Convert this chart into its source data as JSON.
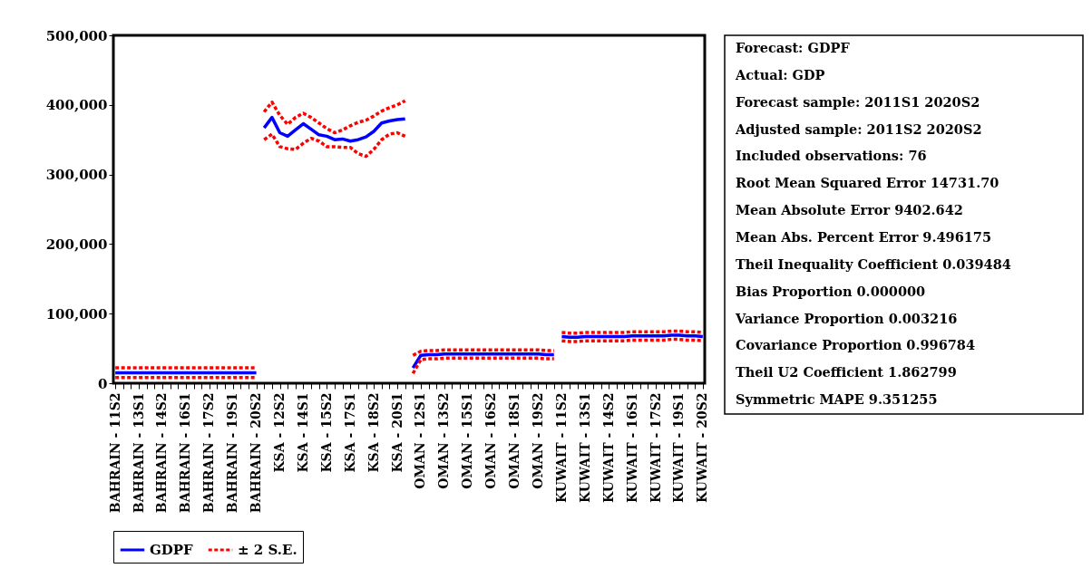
{
  "chart_data": {
    "type": "line",
    "categories": [
      "BAHRAIN - 11S2",
      null,
      null,
      "BAHRAIN - 13S1",
      null,
      null,
      "BAHRAIN - 14S2",
      null,
      null,
      "BAHRAIN - 16S1",
      null,
      null,
      "BAHRAIN - 17S2",
      null,
      null,
      "BAHRAIN - 19S1",
      null,
      null,
      "BAHRAIN - 20S2",
      null,
      null,
      "KSA - 12S2",
      null,
      null,
      "KSA - 14S1",
      null,
      null,
      "KSA - 15S2",
      null,
      null,
      "KSA - 17S1",
      null,
      null,
      "KSA - 18S2",
      null,
      null,
      "KSA - 20S1",
      null,
      null,
      "OMAN - 12S1",
      null,
      null,
      "OMAN - 13S2",
      null,
      null,
      "OMAN - 15S1",
      null,
      null,
      "OMAN - 16S2",
      null,
      null,
      "OMAN - 18S1",
      null,
      null,
      "OMAN - 19S2",
      null,
      null,
      "KUWAIT - 11S2",
      null,
      null,
      "KUWAIT - 13S1",
      null,
      null,
      "KUWAIT - 14S2",
      null,
      null,
      "KUWAIT - 16S1",
      null,
      null,
      "KUWAIT - 17S2",
      null,
      null,
      "KUWAIT - 19S1",
      null,
      null,
      "KUWAIT - 20S2"
    ],
    "series": [
      {
        "name": "GDPF",
        "color": "#0000ff",
        "line_style": "solid",
        "values": [
          15000,
          15000,
          15000,
          15000,
          15000,
          15000,
          15000,
          15000,
          15000,
          15000,
          15000,
          15000,
          15000,
          15000,
          15000,
          15000,
          15000,
          15000,
          15000,
          null,
          null,
          null,
          null,
          null,
          null,
          null,
          null,
          null,
          null,
          null,
          null,
          null,
          null,
          null,
          null,
          null,
          null,
          null,
          null,
          null,
          null,
          null,
          null,
          null,
          null,
          null,
          null,
          null,
          null,
          null,
          null,
          null,
          null,
          null,
          null,
          null,
          null,
          null,
          null,
          null,
          null,
          null,
          null,
          null,
          null,
          null,
          null,
          null,
          null,
          null,
          null,
          null,
          null,
          null,
          null,
          null
        ]
      },
      {
        "name": "± 2 S.E.",
        "color": "#ff0000",
        "line_style": "dashed",
        "values": [
          22000,
          22000,
          22000,
          22000,
          22000,
          22000,
          22000,
          22000,
          22000,
          22000,
          22000,
          22000,
          22000,
          22000,
          22000,
          22000,
          22000,
          22000,
          22000,
          null,
          null,
          null,
          null,
          null,
          null,
          null,
          null,
          null,
          null,
          null,
          null,
          null,
          null,
          null,
          null,
          null,
          null,
          null,
          null,
          null,
          null,
          null,
          null,
          null,
          null,
          null,
          null,
          null,
          null,
          null,
          null,
          null,
          null,
          null,
          null,
          null,
          null,
          null,
          null,
          null,
          null,
          null,
          null,
          null,
          null,
          null,
          null,
          null,
          null,
          null,
          null,
          null,
          null,
          null,
          null,
          null
        ]
      },
      {
        "color": "#ff0000",
        "line_style": "dashed",
        "values": [
          8000,
          8000,
          8000,
          8000,
          8000,
          8000,
          8000,
          8000,
          8000,
          8000,
          8000,
          8000,
          8000,
          8000,
          8000,
          8000,
          8000,
          8000,
          8000,
          null,
          null,
          null,
          null,
          null,
          null,
          null,
          null,
          null,
          null,
          null,
          null,
          null,
          null,
          null,
          null,
          null,
          null,
          null,
          null,
          null,
          null,
          null,
          null,
          null,
          null,
          null,
          null,
          null,
          null,
          null,
          null,
          null,
          null,
          null,
          null,
          null,
          null,
          null,
          null,
          null,
          null,
          null,
          null,
          null,
          null,
          null,
          null,
          null,
          null,
          null,
          null,
          null,
          null,
          null,
          null,
          null
        ]
      },
      {
        "color": "#0000ff",
        "line_style": "solid",
        "values": [
          null,
          null,
          null,
          null,
          null,
          null,
          null,
          null,
          null,
          null,
          null,
          null,
          null,
          null,
          null,
          null,
          null,
          null,
          null,
          367000,
          382000,
          360000,
          355000,
          364000,
          373000,
          365000,
          357000,
          355000,
          350000,
          351000,
          348000,
          350000,
          354000,
          362000,
          374000,
          377000,
          379000,
          380000,
          null,
          null,
          null,
          null,
          null,
          null,
          null,
          null,
          null,
          null,
          null,
          null,
          null,
          null,
          null,
          null,
          null,
          null,
          null,
          null,
          null,
          null,
          null,
          null,
          null,
          null,
          null,
          null,
          null,
          null,
          null,
          null,
          null,
          null,
          null,
          null,
          null,
          null
        ]
      },
      {
        "color": "#ff0000",
        "line_style": "dashed",
        "values": [
          null,
          null,
          null,
          null,
          null,
          null,
          null,
          null,
          null,
          null,
          null,
          null,
          null,
          null,
          null,
          null,
          null,
          null,
          null,
          390000,
          404000,
          385000,
          372000,
          382000,
          388000,
          382000,
          374000,
          366000,
          360000,
          364000,
          370000,
          375000,
          378000,
          384000,
          391000,
          396000,
          400000,
          406000,
          null,
          null,
          null,
          null,
          null,
          null,
          null,
          null,
          null,
          null,
          null,
          null,
          null,
          null,
          null,
          null,
          null,
          null,
          null,
          null,
          null,
          null,
          null,
          null,
          null,
          null,
          null,
          null,
          null,
          null,
          null,
          null,
          null,
          null,
          null,
          null,
          null,
          null
        ]
      },
      {
        "color": "#ff0000",
        "line_style": "dashed",
        "values": [
          null,
          null,
          null,
          null,
          null,
          null,
          null,
          null,
          null,
          null,
          null,
          null,
          null,
          null,
          null,
          null,
          null,
          null,
          null,
          350000,
          358000,
          340000,
          337000,
          336000,
          345000,
          352000,
          348000,
          340000,
          340000,
          339000,
          339000,
          330000,
          326000,
          336000,
          350000,
          358000,
          360000,
          355000,
          null,
          null,
          null,
          null,
          null,
          null,
          null,
          null,
          null,
          null,
          null,
          null,
          null,
          null,
          null,
          null,
          null,
          null,
          null,
          null,
          null,
          null,
          null,
          null,
          null,
          null,
          null,
          null,
          null,
          null,
          null,
          null,
          null,
          null,
          null,
          null,
          null,
          null
        ]
      },
      {
        "color": "#0000ff",
        "line_style": "solid",
        "values": [
          null,
          null,
          null,
          null,
          null,
          null,
          null,
          null,
          null,
          null,
          null,
          null,
          null,
          null,
          null,
          null,
          null,
          null,
          null,
          null,
          null,
          null,
          null,
          null,
          null,
          null,
          null,
          null,
          null,
          null,
          null,
          null,
          null,
          null,
          null,
          null,
          null,
          null,
          22000,
          40000,
          41000,
          41000,
          42000,
          42000,
          42000,
          42000,
          42000,
          42000,
          42000,
          42000,
          42000,
          42000,
          42000,
          42000,
          42000,
          41000,
          41000,
          null,
          null,
          null,
          null,
          null,
          null,
          null,
          null,
          null,
          null,
          null,
          null,
          null,
          null,
          null,
          null,
          null,
          null,
          null
        ]
      },
      {
        "color": "#ff0000",
        "line_style": "dashed",
        "values": [
          null,
          null,
          null,
          null,
          null,
          null,
          null,
          null,
          null,
          null,
          null,
          null,
          null,
          null,
          null,
          null,
          null,
          null,
          null,
          null,
          null,
          null,
          null,
          null,
          null,
          null,
          null,
          null,
          null,
          null,
          null,
          null,
          null,
          null,
          null,
          null,
          null,
          null,
          40000,
          46000,
          47000,
          47000,
          48000,
          48000,
          48000,
          48000,
          48000,
          48000,
          48000,
          48000,
          48000,
          48000,
          48000,
          48000,
          48000,
          47000,
          47000,
          null,
          null,
          null,
          null,
          null,
          null,
          null,
          null,
          null,
          null,
          null,
          null,
          null,
          null,
          null,
          null,
          null,
          null,
          null
        ]
      },
      {
        "color": "#ff0000",
        "line_style": "dashed",
        "values": [
          null,
          null,
          null,
          null,
          null,
          null,
          null,
          null,
          null,
          null,
          null,
          null,
          null,
          null,
          null,
          null,
          null,
          null,
          null,
          null,
          null,
          null,
          null,
          null,
          null,
          null,
          null,
          null,
          null,
          null,
          null,
          null,
          null,
          null,
          null,
          null,
          null,
          null,
          14000,
          34000,
          35000,
          35000,
          36000,
          36000,
          36000,
          36000,
          36000,
          36000,
          36000,
          36000,
          36000,
          36000,
          36000,
          36000,
          36000,
          35000,
          35000,
          null,
          null,
          null,
          null,
          null,
          null,
          null,
          null,
          null,
          null,
          null,
          null,
          null,
          null,
          null,
          null,
          null,
          null,
          null
        ]
      },
      {
        "color": "#0000ff",
        "line_style": "solid",
        "values": [
          null,
          null,
          null,
          null,
          null,
          null,
          null,
          null,
          null,
          null,
          null,
          null,
          null,
          null,
          null,
          null,
          null,
          null,
          null,
          null,
          null,
          null,
          null,
          null,
          null,
          null,
          null,
          null,
          null,
          null,
          null,
          null,
          null,
          null,
          null,
          null,
          null,
          null,
          null,
          null,
          null,
          null,
          null,
          null,
          null,
          null,
          null,
          null,
          null,
          null,
          null,
          null,
          null,
          null,
          null,
          null,
          null,
          67000,
          66000,
          66000,
          67000,
          67000,
          67000,
          67000,
          67000,
          67000,
          68000,
          68000,
          68000,
          68000,
          68000,
          69000,
          69000,
          68000,
          68000,
          67000
        ]
      },
      {
        "color": "#ff0000",
        "line_style": "dashed",
        "values": [
          null,
          null,
          null,
          null,
          null,
          null,
          null,
          null,
          null,
          null,
          null,
          null,
          null,
          null,
          null,
          null,
          null,
          null,
          null,
          null,
          null,
          null,
          null,
          null,
          null,
          null,
          null,
          null,
          null,
          null,
          null,
          null,
          null,
          null,
          null,
          null,
          null,
          null,
          null,
          null,
          null,
          null,
          null,
          null,
          null,
          null,
          null,
          null,
          null,
          null,
          null,
          null,
          null,
          null,
          null,
          null,
          null,
          73000,
          72000,
          72000,
          73000,
          73000,
          73000,
          73000,
          73000,
          73000,
          74000,
          74000,
          74000,
          74000,
          74000,
          75000,
          75000,
          74000,
          74000,
          73000
        ]
      },
      {
        "color": "#ff0000",
        "line_style": "dashed",
        "values": [
          null,
          null,
          null,
          null,
          null,
          null,
          null,
          null,
          null,
          null,
          null,
          null,
          null,
          null,
          null,
          null,
          null,
          null,
          null,
          null,
          null,
          null,
          null,
          null,
          null,
          null,
          null,
          null,
          null,
          null,
          null,
          null,
          null,
          null,
          null,
          null,
          null,
          null,
          null,
          null,
          null,
          null,
          null,
          null,
          null,
          null,
          null,
          null,
          null,
          null,
          null,
          null,
          null,
          null,
          null,
          null,
          null,
          61000,
          60000,
          60000,
          61000,
          61000,
          61000,
          61000,
          61000,
          61000,
          62000,
          62000,
          62000,
          62000,
          62000,
          63000,
          63000,
          62000,
          62000,
          61000
        ]
      }
    ],
    "ylim": [
      0,
      500000
    ],
    "yticks": [
      0,
      {
        "value": 100000,
        "label": "100,000"
      },
      {
        "value": 200000,
        "label": "200,000"
      },
      {
        "value": 300000,
        "label": "300,000"
      },
      {
        "value": 400000,
        "label": "400,000"
      },
      {
        "value": 500000,
        "label": "500,000"
      }
    ],
    "legend": "bottom",
    "annotations": [
      "Forecast: GDPF",
      "Actual: GDP",
      "Forecast sample: 2011S1 2020S2",
      "Adjusted sample: 2011S2 2020S2",
      "Included observations: 76",
      "Root Mean Squared Error     14731.70",
      "Mean Absolute Error     9402.642",
      "Mean Abs. Percent Error     9.496175",
      "Theil Inequality Coefficient     0.039484",
      "Bias Proportion     0.000000",
      "Variance Proportion     0.003216",
      "Covariance Proportion     0.996784",
      "Theil U2 Coefficient     1.862799",
      "Symmetric MAPE     9.351255"
    ]
  }
}
